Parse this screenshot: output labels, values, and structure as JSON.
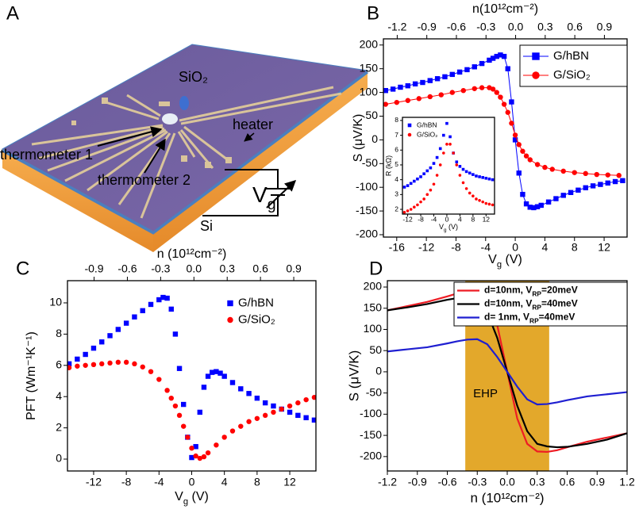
{
  "panel_a": {
    "label": "A",
    "oxide": "SiO₂",
    "heater": "heater",
    "thermometer_1": "thermometer 1",
    "thermometer_2": "thermometer 2",
    "gate": [
      {
        "text": "V"
      },
      {
        "text": "g",
        "sub": true
      }
    ],
    "substrate": "Si"
  },
  "chart_data": [
    {
      "type": "line",
      "label": "B",
      "x2label": "n(10¹²cm⁻²)",
      "xlabel": [
        {
          "text": "V"
        },
        {
          "text": "g",
          "sub": true
        },
        {
          "text": " (V)"
        }
      ],
      "ylabel": "S (μV/K)",
      "xlim": [
        -17.8,
        15.1
      ],
      "ylim": [
        -205,
        213
      ],
      "xticks": [
        -16,
        -12,
        -8,
        -4,
        0,
        4,
        8,
        12
      ],
      "yticks": [
        -200,
        -150,
        -100,
        -50,
        0,
        50,
        100,
        150,
        200
      ],
      "x2lim": [
        -1.34,
        1.13
      ],
      "x2ticks": [
        -1.2,
        -0.9,
        -0.6,
        -0.3,
        {
          "value": 0,
          "label": "0.0"
        },
        0.3,
        0.6,
        0.9
      ],
      "legend": "upper right",
      "legend_frame": true,
      "series": [
        {
          "name": "G/hBN",
          "color": "#0000ff",
          "marker": "square",
          "x": [
            -17.5,
            -16.5,
            -15.5,
            -14.5,
            -13.5,
            -12.5,
            -11.5,
            -10.5,
            -9.5,
            -8.5,
            -7.5,
            -6.5,
            -5.5,
            -4.5,
            -3.5,
            -3,
            -2.5,
            -2,
            -1.5,
            -1,
            -0.5,
            0,
            0.5,
            1,
            1.5,
            2,
            2.5,
            3,
            3.5,
            4.5,
            5.5,
            6.5,
            7.5,
            8.5,
            9.5,
            10.5,
            11.5,
            12.5,
            13.5,
            14.5
          ],
          "values": [
            104,
            107,
            111,
            114,
            118,
            121,
            125,
            129,
            133,
            138,
            143,
            148,
            154,
            161,
            168,
            172,
            176,
            179,
            176,
            150,
            80,
            0,
            -70,
            -115,
            -135,
            -142,
            -143,
            -141,
            -138,
            -131,
            -124,
            -117,
            -111,
            -106,
            -101,
            -97,
            -94,
            -91,
            -88,
            -86
          ]
        },
        {
          "name": "G/SiO₂",
          "color": "#ff0000",
          "marker": "circle",
          "x": [
            -17.5,
            -16,
            -14.5,
            -13,
            -11.5,
            -10,
            -8.5,
            -7,
            -5.5,
            -4.5,
            -3.5,
            -3,
            -2.5,
            -2,
            -1.5,
            -1,
            -0.5,
            0,
            0.5,
            1,
            1.5,
            2,
            3,
            4,
            5,
            6.5,
            8,
            9.5,
            11,
            12.5,
            14
          ],
          "values": [
            75,
            79,
            83,
            87,
            91,
            95,
            100,
            104,
            108,
            110,
            110,
            107,
            100,
            90,
            75,
            58,
            35,
            10,
            -10,
            -24,
            -34,
            -42,
            -52,
            -58,
            -62,
            -66,
            -69,
            -71,
            -73,
            -74,
            -75
          ]
        }
      ]
    },
    {
      "type": "scatter",
      "xlabel": [
        {
          "text": "V"
        },
        {
          "text": "g",
          "sub": true
        },
        {
          "text": " (V)"
        }
      ],
      "ylabel": "R (kΩ)",
      "xlim": [
        -13.6,
        14.6
      ],
      "ylim": [
        1.68,
        8.21
      ],
      "xticks": [
        -12,
        -8,
        -4,
        0,
        4,
        8,
        12
      ],
      "yticks": [
        2,
        3,
        4,
        5,
        6,
        7,
        8
      ],
      "legend": "upper left",
      "legend_frame": false,
      "x": [
        -13,
        -12,
        -11,
        -10,
        -9,
        -8,
        -7,
        -6,
        -5,
        -4,
        -3,
        -2,
        -1,
        0,
        1,
        2,
        3,
        4,
        5,
        6,
        7,
        8,
        9,
        10,
        11,
        12,
        13,
        14
      ],
      "series": [
        {
          "name": "G/hBN",
          "color": "#0000ff",
          "marker": "square",
          "values": [
            3.5,
            3.6,
            3.75,
            3.9,
            4.05,
            4.2,
            4.4,
            4.6,
            4.8,
            5.1,
            5.5,
            6.1,
            7.0,
            7.8,
            6.9,
            5.8,
            5.2,
            4.9,
            4.7,
            4.55,
            4.45,
            4.35,
            4.25,
            4.2,
            4.15,
            4.1,
            4.05,
            4.0
          ]
        },
        {
          "name": "G/SiO₂",
          "color": "#ff0000",
          "marker": "circle",
          "values": [
            1.8,
            1.9,
            2.0,
            2.15,
            2.3,
            2.5,
            2.7,
            3.0,
            3.3,
            3.7,
            4.3,
            5.0,
            5.8,
            6.4,
            6.4,
            5.8,
            5.0,
            4.3,
            3.8,
            3.4,
            3.1,
            2.9,
            2.7,
            2.6,
            2.5,
            2.4,
            2.35,
            2.3
          ]
        }
      ]
    },
    {
      "type": "scatter",
      "label": "C",
      "x2label": "n (10¹²cm⁻²)",
      "xlabel": [
        {
          "text": "V"
        },
        {
          "text": "g",
          "sub": true
        },
        {
          "text": " (V)"
        }
      ],
      "ylabel": "PFT (Wm⁻¹K⁻¹)",
      "xlim": [
        -15.2,
        15.2
      ],
      "ylim": [
        -0.76,
        11.42
      ],
      "xticks": [
        -12,
        -8,
        -4,
        0,
        4,
        8,
        12
      ],
      "yticks": [
        0,
        2,
        4,
        6,
        8,
        10
      ],
      "x2lim": [
        -1.14,
        1.1
      ],
      "x2ticks": [
        -0.9,
        -0.6,
        -0.3,
        {
          "value": 0,
          "label": "0.0"
        },
        0.3,
        0.6,
        0.9
      ],
      "legend": "upper right",
      "legend_frame": false,
      "series": [
        {
          "name": "G/hBN",
          "color": "#0000ff",
          "marker": "square",
          "x": [
            -15,
            -14,
            -13,
            -12,
            -11,
            -10,
            -9,
            -8,
            -7,
            -6,
            -5,
            -4,
            -3.5,
            -3,
            -2.5,
            -2,
            -1.5,
            -1,
            -0.5,
            0,
            0.5,
            1,
            1.5,
            2,
            2.5,
            3,
            3.5,
            4,
            5,
            6,
            7,
            8,
            9,
            10,
            11,
            12,
            13,
            14,
            15
          ],
          "values": [
            6.1,
            6.4,
            6.7,
            7.1,
            7.5,
            7.9,
            8.3,
            8.7,
            9.1,
            9.5,
            9.9,
            10.2,
            10.35,
            10.3,
            9.6,
            8.0,
            5.8,
            3.5,
            1.4,
            0.1,
            0.8,
            3.0,
            4.6,
            5.3,
            5.55,
            5.6,
            5.5,
            5.3,
            4.9,
            4.5,
            4.2,
            3.9,
            3.6,
            3.4,
            3.2,
            3.0,
            2.8,
            2.65,
            2.5
          ]
        },
        {
          "name": "G/SiO₂",
          "color": "#ff0000",
          "marker": "circle",
          "x": [
            -15,
            -14,
            -13,
            -12,
            -11,
            -10,
            -9,
            -8,
            -7,
            -6,
            -5,
            -4,
            -3,
            -2.5,
            -2,
            -1.5,
            -1,
            -0.5,
            0,
            0.5,
            1,
            1.5,
            2,
            3,
            4,
            5,
            6,
            7,
            8,
            9,
            10,
            11,
            12,
            13,
            14,
            15
          ],
          "values": [
            5.85,
            5.95,
            6.0,
            6.05,
            6.1,
            6.15,
            6.2,
            6.2,
            6.1,
            5.9,
            5.6,
            5.1,
            4.4,
            3.9,
            3.4,
            2.8,
            2.1,
            1.4,
            0.7,
            0.2,
            0.05,
            0.15,
            0.4,
            0.9,
            1.4,
            1.8,
            2.1,
            2.4,
            2.6,
            2.8,
            3.0,
            3.2,
            3.4,
            3.6,
            3.8,
            3.95
          ]
        }
      ]
    },
    {
      "type": "line",
      "label": "D",
      "xlabel": "n (10¹²cm⁻²)",
      "ylabel": "S (μV/K)",
      "xlim": [
        -1.2,
        1.2
      ],
      "ylim": [
        -234,
        215
      ],
      "xticks": [
        -1.2,
        -0.9,
        -0.6,
        -0.3,
        {
          "value": 0,
          "label": "0.0"
        },
        0.3,
        0.6,
        0.9,
        1.2
      ],
      "yticks": [
        -200,
        -150,
        -100,
        -50,
        0,
        50,
        100,
        150,
        200
      ],
      "shaded_region": {
        "x": [
          -0.42,
          0.42
        ],
        "color": "#e3a82b",
        "label": "EHP"
      },
      "legend": "upper right",
      "legend_frame": true,
      "x": [
        -1.2,
        -1.0,
        -0.8,
        -0.6,
        -0.5,
        -0.4,
        -0.3,
        -0.2,
        -0.1,
        0,
        0.1,
        0.2,
        0.3,
        0.4,
        0.5,
        0.6,
        0.8,
        1.0,
        1.2
      ],
      "series": [
        {
          "name": [
            {
              "text": "d=10nm, V"
            },
            {
              "text": "RP",
              "sub": true
            },
            {
              "text": "=20meV"
            }
          ],
          "color": "#ee1c24",
          "marker": null,
          "values": [
            145,
            155,
            165,
            178,
            185,
            189,
            188,
            170,
            110,
            0,
            -110,
            -170,
            -188,
            -189,
            -185,
            -178,
            -165,
            -155,
            -145
          ]
        },
        {
          "name": [
            {
              "text": "d=10nm, V"
            },
            {
              "text": "RP",
              "sub": true
            },
            {
              "text": "=40meV"
            }
          ],
          "color": "#000000",
          "marker": null,
          "values": [
            145,
            152,
            160,
            170,
            174,
            176,
            170,
            140,
            80,
            0,
            -80,
            -140,
            -170,
            -176,
            -178,
            -177,
            -170,
            -160,
            -145
          ]
        },
        {
          "name": [
            {
              "text": "d= 1nm, V"
            },
            {
              "text": "RP",
              "sub": true
            },
            {
              "text": "=40meV"
            }
          ],
          "color": "#1f1fd1",
          "marker": null,
          "values": [
            48,
            53,
            58,
            67,
            72,
            76,
            77,
            65,
            35,
            0,
            -35,
            -65,
            -77,
            -76,
            -72,
            -67,
            -58,
            -53,
            -48
          ]
        }
      ]
    }
  ]
}
